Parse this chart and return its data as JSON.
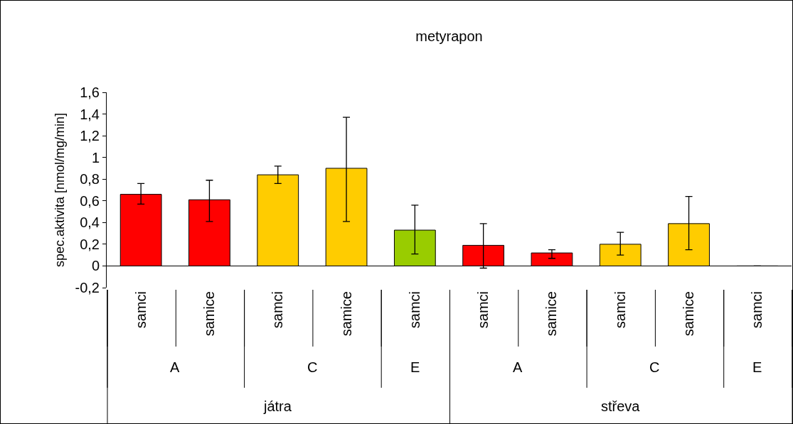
{
  "chart_data": {
    "type": "bar",
    "title": "metyrapon",
    "ylabel": "spec.aktivita [nmol/mg/min]",
    "categories": [
      "samci",
      "samice",
      "samci",
      "samice",
      "samci",
      "samci",
      "samice",
      "samci",
      "samice",
      "samci"
    ],
    "values": [
      0.66,
      0.61,
      0.84,
      0.9,
      0.33,
      0.19,
      0.12,
      0.2,
      0.39,
      0
    ],
    "colors": [
      "#ff0000",
      "#ff0000",
      "#ffcc00",
      "#ffcc00",
      "#99cc00",
      "#ff0000",
      "#ff0000",
      "#ffcc00",
      "#ffcc00",
      "#99cc00"
    ],
    "errors": [
      [
        0.57,
        0.76
      ],
      [
        0.41,
        0.79
      ],
      [
        0.76,
        0.92
      ],
      [
        0.41,
        1.37
      ],
      [
        0.11,
        0.56
      ],
      [
        -0.02,
        0.39
      ],
      [
        0.07,
        0.15
      ],
      [
        0.1,
        0.31
      ],
      [
        0.15,
        0.64
      ],
      null
    ],
    "ylim": [
      -0.2,
      1.6
    ],
    "yticks": [
      {
        "value": -0.2,
        "label": "-0,2"
      },
      0,
      {
        "value": 0.2,
        "label": "0,2"
      },
      {
        "value": 0.4,
        "label": "0,4"
      },
      {
        "value": 0.6,
        "label": "0,6"
      },
      {
        "value": 0.8,
        "label": "0,8"
      },
      1,
      {
        "value": 1.2,
        "label": "1,2"
      },
      {
        "value": 1.4,
        "label": "1,4"
      },
      {
        "value": 1.6,
        "label": "1,6"
      }
    ],
    "grid": false,
    "annotations": [
      "A",
      "C",
      "E",
      "A",
      "C",
      "E",
      "játra",
      "střeva"
    ]
  }
}
